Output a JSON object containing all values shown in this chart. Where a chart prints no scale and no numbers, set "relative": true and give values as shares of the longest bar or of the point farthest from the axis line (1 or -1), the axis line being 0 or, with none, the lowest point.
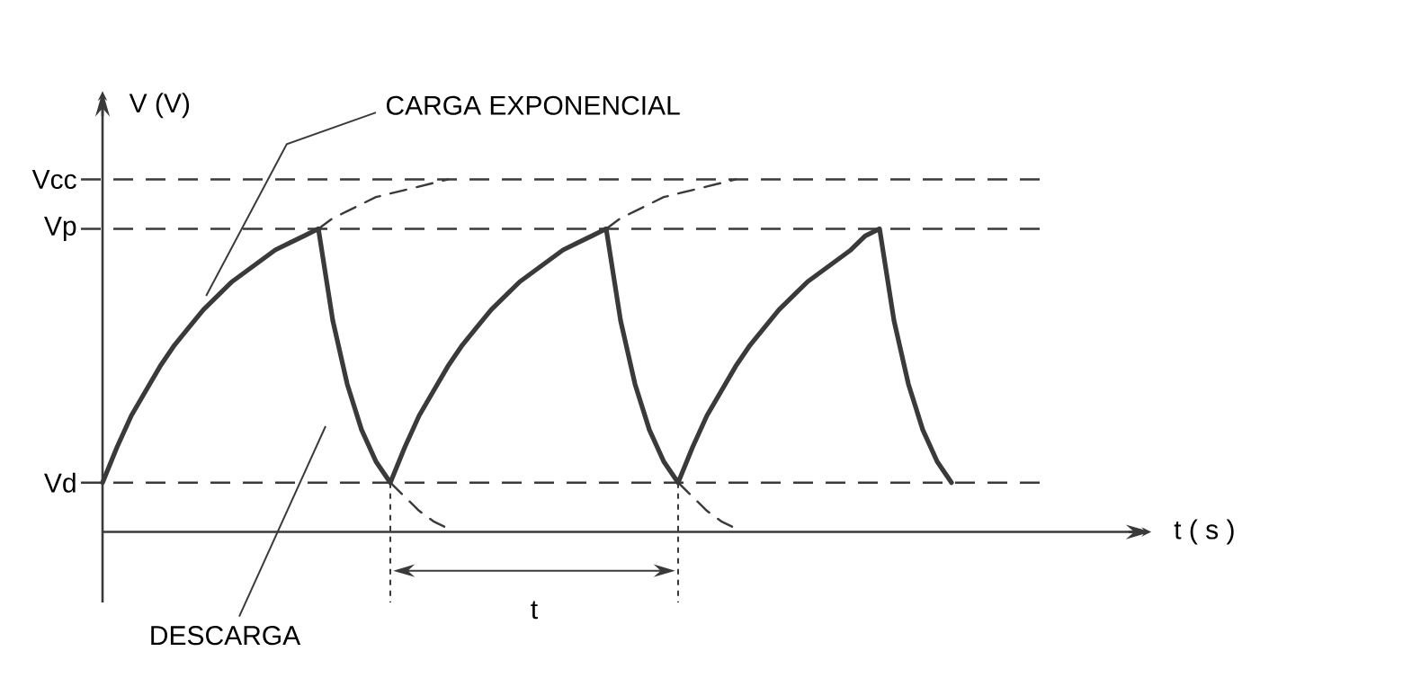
{
  "chart_data": {
    "type": "line",
    "relative": true,
    "ylabel": "V (V)",
    "categories": [
      null,
      null,
      null,
      null,
      null,
      null,
      null,
      null,
      null,
      null,
      null,
      null,
      null,
      null,
      null,
      null,
      null,
      null,
      null,
      null,
      null,
      null,
      null,
      null,
      null,
      null,
      null,
      null,
      null,
      null,
      null,
      null,
      null,
      null,
      null,
      null,
      null,
      null,
      null,
      null,
      null,
      null,
      null,
      null,
      null,
      null,
      null,
      null,
      null,
      null,
      null,
      null,
      null,
      null,
      null,
      null,
      null,
      null,
      null,
      null
    ],
    "series": [
      {
        "color": "#3a3a3a",
        "line_style": "solid",
        "values": [
          0.14,
          0.24,
          0.33,
          0.4,
          0.47,
          0.53,
          0.58,
          0.63,
          0.67,
          0.71,
          0.74,
          0.77,
          0.8,
          0.82,
          0.84,
          0.86,
          0.6,
          0.42,
          0.29,
          0.2,
          0.14,
          0.24,
          0.33,
          0.4,
          0.47,
          0.53,
          0.58,
          0.63,
          0.67,
          0.71,
          0.74,
          0.77,
          0.8,
          0.82,
          0.84,
          0.86,
          0.6,
          0.42,
          0.29,
          0.2,
          0.14,
          0.24,
          0.33,
          0.4,
          0.47,
          0.53,
          0.58,
          0.63,
          0.67,
          0.71,
          0.74,
          0.77,
          0.8,
          0.84,
          0.86,
          0.6,
          0.42,
          0.29,
          0.2,
          0.14
        ]
      },
      {
        "color": "#3a3a3a",
        "line_style": "dashed",
        "values": [
          null,
          null,
          null,
          null,
          null,
          null,
          null,
          null,
          null,
          null,
          null,
          null,
          null,
          null,
          null,
          0.86,
          0.89,
          0.91,
          0.93,
          0.95,
          0.96,
          0.97,
          0.98,
          0.99,
          1.0,
          null,
          null,
          null,
          null,
          null,
          null,
          null,
          null,
          null,
          null,
          0.86,
          0.89,
          0.91,
          0.93,
          0.95,
          0.96,
          0.97,
          0.98,
          0.99,
          1.0,
          null,
          null,
          null,
          null,
          null,
          null,
          null,
          null,
          null,
          null,
          null,
          null,
          null,
          null,
          null
        ]
      },
      {
        "color": "#3a3a3a",
        "line_style": "dashed",
        "values": [
          null,
          null,
          null,
          null,
          null,
          null,
          null,
          null,
          null,
          null,
          null,
          null,
          null,
          null,
          null,
          null,
          null,
          null,
          null,
          null,
          0.14,
          0.1,
          0.06,
          0.03,
          0.01,
          null,
          null,
          null,
          null,
          null,
          null,
          null,
          null,
          null,
          null,
          null,
          null,
          null,
          null,
          null,
          0.14,
          0.1,
          0.06,
          0.03,
          0.01,
          null,
          null,
          null,
          null,
          null,
          null,
          null,
          null,
          null,
          null,
          null,
          null,
          null,
          null,
          null
        ]
      }
    ],
    "ref_lines": [
      {
        "axis": "y",
        "value": 1.0,
        "label": "Vcc",
        "color": "#3a3a3a",
        "line_style": "dashed"
      },
      {
        "axis": "y",
        "value": 0.86,
        "label": "Vp",
        "color": "#3a3a3a",
        "line_style": "dashed"
      },
      {
        "axis": "y",
        "value": 0.14,
        "label": "Vd",
        "color": "#3a3a3a",
        "line_style": "dashed"
      }
    ],
    "annotations": [
      "CARGA EXPONENCIAL",
      "DESCARGA",
      "t",
      "t ( s )"
    ]
  }
}
